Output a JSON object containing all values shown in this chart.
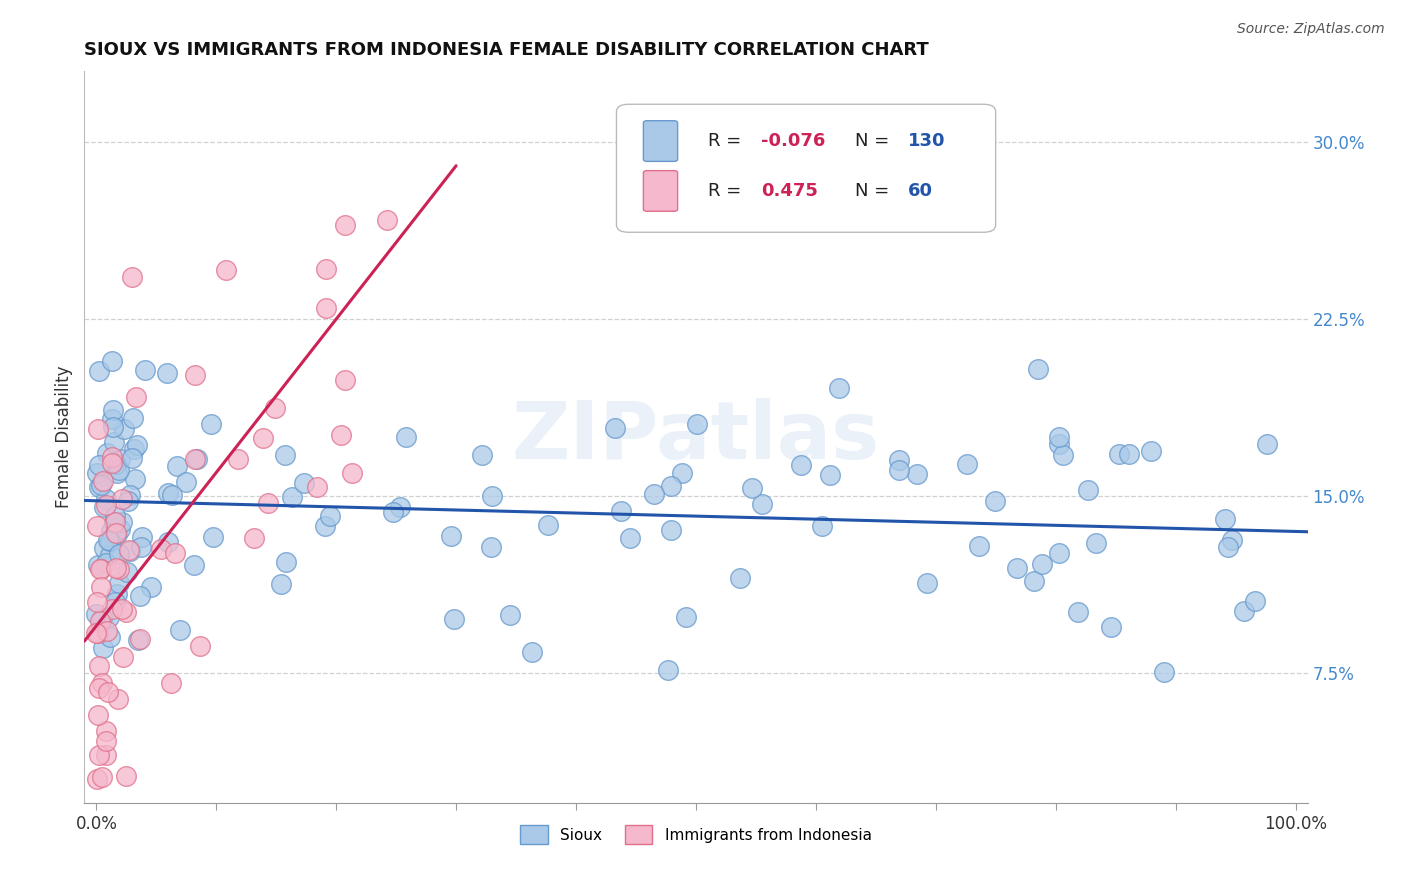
{
  "title": "SIOUX VS IMMIGRANTS FROM INDONESIA FEMALE DISABILITY CORRELATION CHART",
  "source": "Source: ZipAtlas.com",
  "ylabel": "Female Disability",
  "xlim": [
    -1,
    101
  ],
  "ylim": [
    2,
    33
  ],
  "xticks": [
    0,
    10,
    20,
    30,
    40,
    50,
    60,
    70,
    80,
    90,
    100
  ],
  "xticklabels": [
    "0.0%",
    "",
    "",
    "",
    "",
    "",
    "",
    "",
    "",
    "",
    "100.0%"
  ],
  "yticks": [
    7.5,
    15.0,
    22.5,
    30.0
  ],
  "yticklabels": [
    "7.5%",
    "15.0%",
    "22.5%",
    "30.0%"
  ],
  "legend_r_sioux": "-0.076",
  "legend_n_sioux": "130",
  "legend_r_immigrants": "0.475",
  "legend_n_immigrants": "60",
  "sioux_color": "#aac9e8",
  "sioux_edge_color": "#6699cc",
  "immigrants_color": "#f5b8cc",
  "immigrants_edge_color": "#e0708a",
  "sioux_line_color": "#2255aa",
  "immigrants_line_color": "#cc2255",
  "watermark": "ZIPatlas",
  "background_color": "#ffffff",
  "grid_color": "#cccccc",
  "title_color": "#111111",
  "source_color": "#555555",
  "ytick_color": "#4488cc",
  "xtick_color": "#333333",
  "ylabel_color": "#333333",
  "legend_r_color": "#cc2255",
  "legend_n_color": "#2255aa"
}
